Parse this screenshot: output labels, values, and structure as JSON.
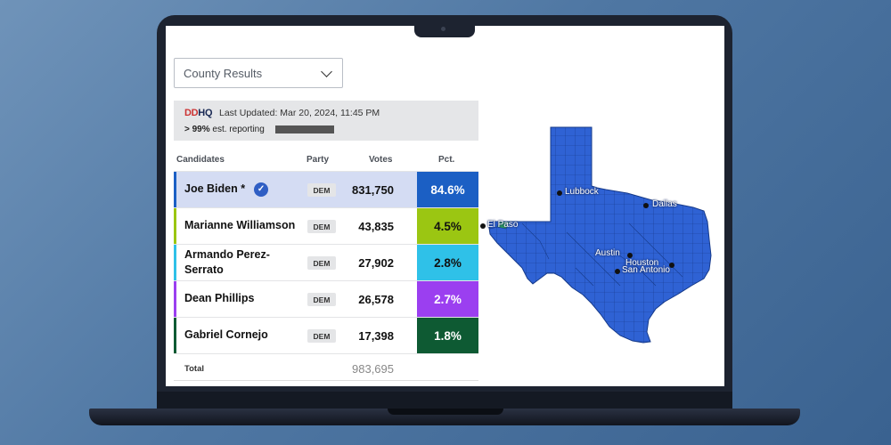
{
  "view_select": {
    "selected": "County Results"
  },
  "header": {
    "logo_dd": "DD",
    "logo_hq": "HQ",
    "last_updated": "Last Updated: Mar 20, 2024, 11:45 PM",
    "reporting_bold": "> 99%",
    "reporting_text": " est. reporting"
  },
  "columns": {
    "candidates": "Candidates",
    "party": "Party",
    "votes": "Votes",
    "pct": "Pct."
  },
  "candidates": [
    {
      "name": "Joe Biden *",
      "party": "DEM",
      "votes": "831,750",
      "pct": "84.6%",
      "color": "#1b5fc4",
      "winner": true
    },
    {
      "name": "Marianne Williamson",
      "party": "DEM",
      "votes": "43,835",
      "pct": "4.5%",
      "color": "#9bc612",
      "winner": false
    },
    {
      "name": "Armando Perez-Serrato",
      "party": "DEM",
      "votes": "27,902",
      "pct": "2.8%",
      "color": "#2fc1e8",
      "winner": false
    },
    {
      "name": "Dean Phillips",
      "party": "DEM",
      "votes": "26,578",
      "pct": "2.7%",
      "color": "#9b3ff0",
      "winner": false
    },
    {
      "name": "Gabriel Cornejo",
      "party": "DEM",
      "votes": "17,398",
      "pct": "1.8%",
      "color": "#0e5a33",
      "winner": false
    }
  ],
  "total": {
    "label": "Total",
    "votes": "983,695"
  },
  "map": {
    "fill_color": "#2f62d4",
    "cities": [
      "Lubbock",
      "Dallas",
      "El Paso",
      "Austin",
      "Houston",
      "San Antonio"
    ]
  }
}
